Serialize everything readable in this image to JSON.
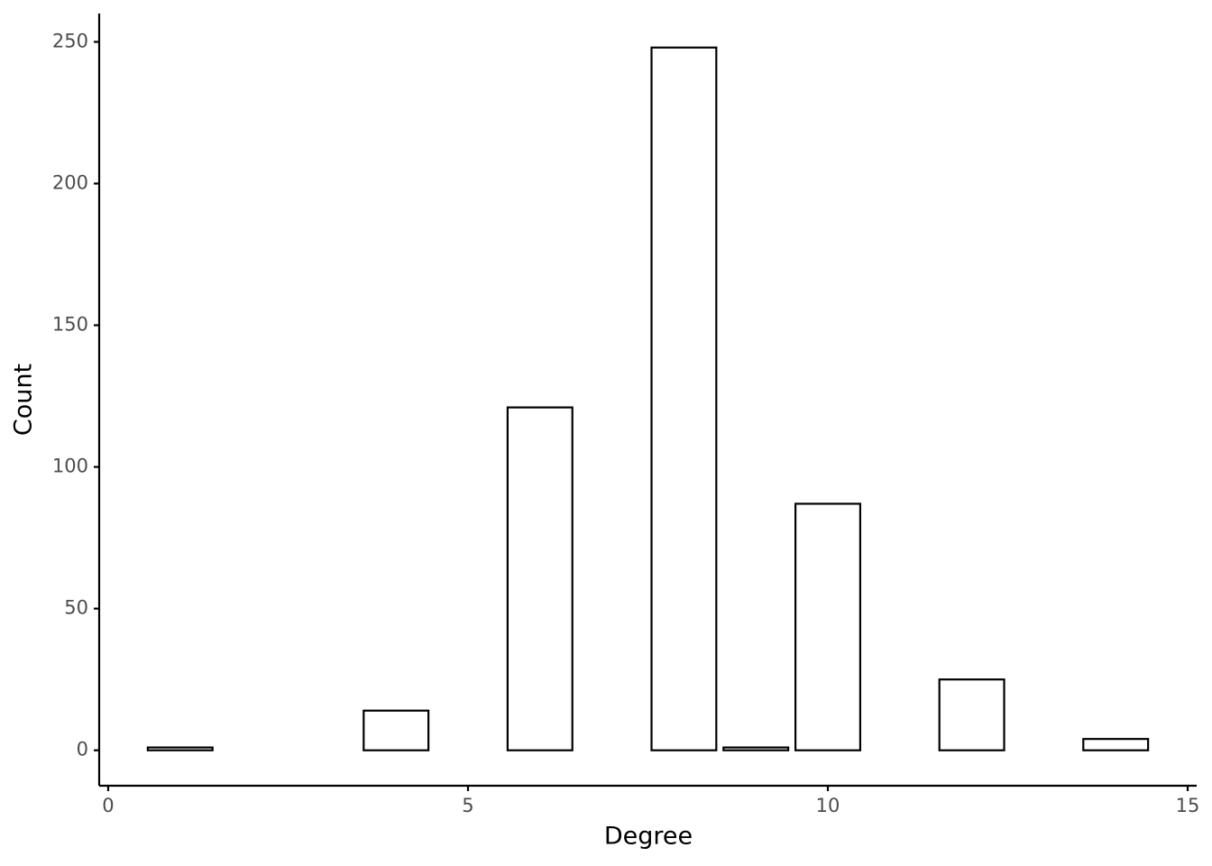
{
  "chart_data": {
    "type": "bar",
    "x_label": "Degree",
    "y_label": "Count",
    "x": [
      1,
      4,
      6,
      8,
      9,
      10,
      12,
      14
    ],
    "values": [
      1,
      14,
      121,
      248,
      1,
      87,
      25,
      4
    ],
    "color": "#ffffff",
    "edge_color": "#000000",
    "xlim": [
      -0.125,
      15.125
    ],
    "xticks": [
      0,
      5,
      10,
      15
    ],
    "ylim": [
      -12.5,
      260
    ],
    "yticks": [
      0,
      50,
      100,
      150,
      200,
      250
    ],
    "grid": false
  }
}
